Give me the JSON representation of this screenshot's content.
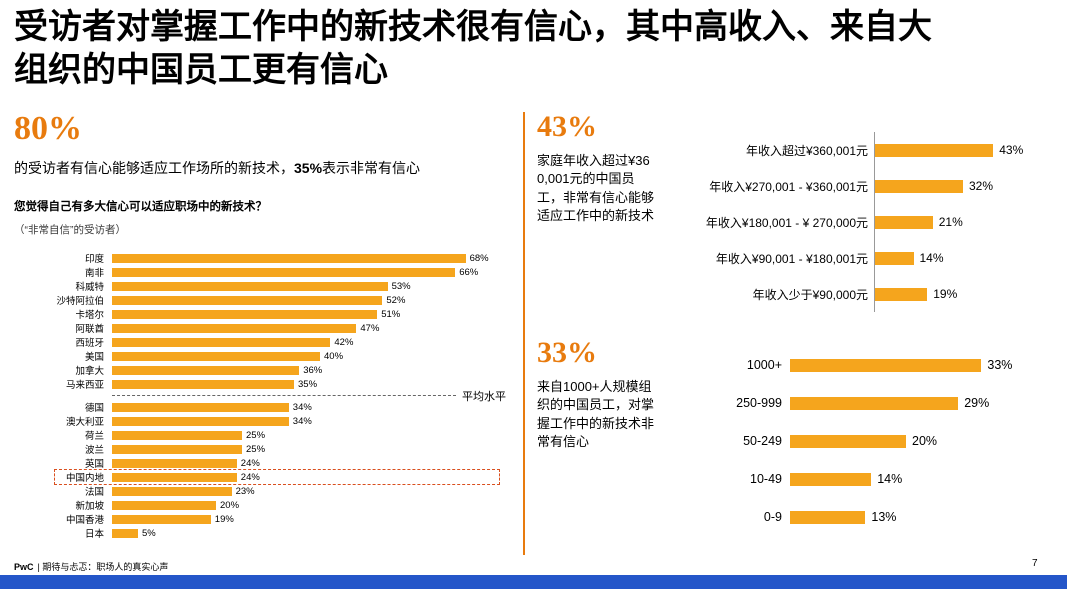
{
  "colors": {
    "accent": "#E87B0E",
    "bar": "#F5A51D",
    "highlight": "#D94F1E",
    "taskbar": "#2456C9",
    "axis": "#999999"
  },
  "title": {
    "line1": "受访者对掌握工作中的新技术很有信心，其中高收入、来自大",
    "line2": "组织的中国员工更有信心"
  },
  "left_stat": {
    "value": "80%",
    "desc_pre": "的受访者有信心能够适应工作场所的新技术，",
    "desc_bold": "35%",
    "desc_post": "表示非常有信心"
  },
  "income_stat": {
    "value": "43%",
    "desc": "家庭年收入超过¥360,001元的中国员工，非常有信心能够适应工作中的新技术"
  },
  "org_stat": {
    "value": "33%",
    "desc": "来自1000+人规模组织的中国员工，对掌握工作中的新技术非常有信心"
  },
  "footer": {
    "brand": "PwC",
    "rest": "| 期待与忐忑：职场人的真实心声",
    "page": "7"
  },
  "chart_data": [
    {
      "id": "countries",
      "type": "bar",
      "orientation": "horizontal",
      "title": "您觉得自己有多大信心可以适应职场中的新技术？",
      "subtitle": "（“非常自信”的受访者）",
      "unit": "%",
      "categories": [
        "印度",
        "南非",
        "科威特",
        "沙特阿拉伯",
        "卡塔尔",
        "阿联酋",
        "西班牙",
        "美国",
        "加拿大",
        "马来西亚",
        "德国",
        "澳大利亚",
        "荷兰",
        "波兰",
        "英国",
        "中国内地",
        "法国",
        "新加坡",
        "中国香港",
        "日本"
      ],
      "values": [
        68,
        66,
        53,
        52,
        51,
        47,
        42,
        40,
        36,
        35,
        34,
        34,
        25,
        25,
        24,
        24,
        23,
        20,
        19,
        5
      ],
      "highlight_category": "中国内地",
      "average_label": "平均水平",
      "average_after_category": "马来西亚",
      "xlim": [
        0,
        70
      ],
      "legend": false
    },
    {
      "id": "income",
      "type": "bar",
      "orientation": "horizontal",
      "unit": "%",
      "categories": [
        "年收入超过¥360,001元",
        "年收入¥270,001 - ¥360,001元",
        "年收入¥180,001 - ¥ 270,000元",
        "年收入¥90,001 - ¥180,001元",
        "年收入少于¥90,000元"
      ],
      "values": [
        43,
        32,
        21,
        14,
        19
      ],
      "xlim": [
        0,
        50
      ],
      "legend": false
    },
    {
      "id": "orgsize",
      "type": "bar",
      "orientation": "horizontal",
      "unit": "%",
      "categories": [
        "1000+",
        "250-999",
        "50-249",
        "10-49",
        "0-9"
      ],
      "values": [
        33,
        29,
        20,
        14,
        13
      ],
      "xlim": [
        0,
        40
      ],
      "legend": false
    }
  ]
}
